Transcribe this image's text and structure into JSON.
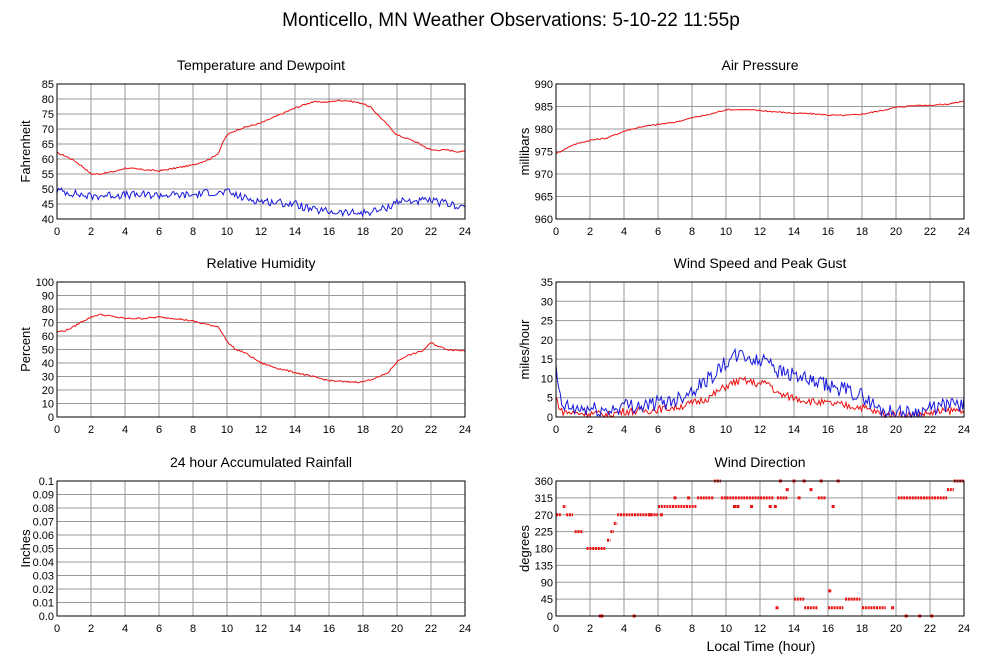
{
  "page": {
    "title": "Monticello, MN Weather Observations: 5-10-22 11:55p",
    "xaxis_label": "Local Time (hour)"
  },
  "colors": {
    "red": "#ee1111",
    "blue": "#1a1adc",
    "grid": "#999999",
    "frame": "#000000"
  },
  "chart_data": [
    {
      "id": "temp",
      "type": "line",
      "title": "Temperature and Dewpoint",
      "ylabel": "Fahrenheit",
      "xlim": [
        0,
        24
      ],
      "ylim": [
        40,
        85
      ],
      "xticks": [
        0,
        2,
        4,
        6,
        8,
        10,
        12,
        14,
        16,
        18,
        20,
        22,
        24
      ],
      "yticks": [
        40,
        45,
        50,
        55,
        60,
        65,
        70,
        75,
        80,
        85
      ],
      "grid": true,
      "series": [
        {
          "color": "#ee1111",
          "noise": 0.25,
          "x": [
            0,
            0.5,
            1,
            1.5,
            2,
            2.5,
            3,
            3.5,
            4,
            5,
            6,
            7,
            8,
            8.5,
            9,
            9.5,
            9.8,
            10,
            10.5,
            11,
            12,
            13,
            14,
            15,
            16,
            16.5,
            17,
            17.5,
            18,
            18.5,
            19,
            19.5,
            20,
            20.5,
            21,
            21.5,
            22,
            22.5,
            23,
            23.5,
            24
          ],
          "values": [
            62,
            61,
            59.5,
            57.5,
            55,
            55,
            55.5,
            56,
            57,
            56.5,
            56,
            57,
            58,
            59,
            60,
            62,
            66,
            68,
            69.5,
            70.5,
            72,
            74.5,
            77,
            79,
            79,
            79.5,
            79.5,
            79,
            78.5,
            77,
            74,
            71,
            68,
            67,
            66,
            64.5,
            63,
            63,
            63,
            62.5,
            62.5
          ]
        },
        {
          "color": "#1a1adc",
          "noise": 1.3,
          "x": [
            0,
            1,
            2,
            3,
            4,
            5,
            6,
            7,
            8,
            9,
            9.5,
            10,
            10.5,
            11,
            12,
            13,
            14,
            15,
            16,
            17,
            18,
            19,
            19.5,
            20,
            21,
            22,
            23,
            24
          ],
          "values": [
            49.5,
            48.5,
            47.5,
            48,
            48,
            48,
            48,
            48,
            48,
            49,
            48.5,
            49,
            48,
            47,
            46,
            45.5,
            45,
            43,
            42.5,
            42,
            42,
            43,
            44,
            46,
            46,
            46,
            45,
            44
          ]
        }
      ]
    },
    {
      "id": "pressure",
      "type": "line",
      "title": "Air Pressure",
      "ylabel": "millibars",
      "xlim": [
        0,
        24
      ],
      "ylim": [
        960,
        990
      ],
      "xticks": [
        0,
        2,
        4,
        6,
        8,
        10,
        12,
        14,
        16,
        18,
        20,
        22,
        24
      ],
      "yticks": [
        960,
        965,
        970,
        975,
        980,
        985,
        990
      ],
      "grid": true,
      "series": [
        {
          "color": "#ee1111",
          "noise": 0.15,
          "x": [
            0,
            1,
            2,
            3,
            4,
            5,
            6,
            7,
            8,
            9,
            10,
            11,
            12,
            13,
            14,
            15,
            16,
            17,
            18,
            19,
            20,
            21,
            22,
            23,
            24
          ],
          "values": [
            974.5,
            976.5,
            977.5,
            978,
            979.5,
            980.5,
            981,
            981.5,
            982.5,
            983.2,
            984.3,
            984.3,
            984.1,
            983.8,
            983.5,
            983.4,
            983.1,
            983,
            983.3,
            984,
            984.8,
            985.2,
            985.3,
            985.5,
            986.2
          ]
        }
      ]
    },
    {
      "id": "humidity",
      "type": "line",
      "title": "Relative Humidity",
      "ylabel": "Percent",
      "xlim": [
        0,
        24
      ],
      "ylim": [
        0,
        100
      ],
      "xticks": [
        0,
        2,
        4,
        6,
        8,
        10,
        12,
        14,
        16,
        18,
        20,
        22,
        24
      ],
      "yticks": [
        0,
        10,
        20,
        30,
        40,
        50,
        60,
        70,
        80,
        90,
        100
      ],
      "grid": true,
      "series": [
        {
          "color": "#ee1111",
          "noise": 0.6,
          "x": [
            0,
            0.5,
            1,
            1.5,
            2,
            2.5,
            3,
            4,
            5,
            6,
            7,
            8,
            9,
            9.5,
            10,
            10.5,
            11,
            12,
            13,
            14,
            15,
            16,
            17,
            18,
            19,
            19.5,
            20,
            20.5,
            21,
            21.5,
            22,
            22.5,
            23,
            24
          ],
          "values": [
            63,
            64,
            67,
            71,
            74,
            76,
            75,
            73,
            73,
            74,
            73,
            71,
            68,
            67,
            56,
            50,
            48,
            40,
            36,
            33,
            30,
            27,
            26,
            26,
            30,
            33,
            41,
            45,
            47,
            49,
            55,
            52,
            50,
            49
          ]
        }
      ]
    },
    {
      "id": "wind",
      "type": "line",
      "title": "Wind Speed and Peak Gust",
      "ylabel": "miles/hour",
      "xlim": [
        0,
        24
      ],
      "ylim": [
        0,
        35
      ],
      "xticks": [
        0,
        2,
        4,
        6,
        8,
        10,
        12,
        14,
        16,
        18,
        20,
        22,
        24
      ],
      "yticks": [
        0,
        5,
        10,
        15,
        20,
        25,
        30,
        35
      ],
      "grid": true,
      "series": [
        {
          "color": "#ee1111",
          "noise": 1.0,
          "x": [
            0,
            0.3,
            1,
            2,
            3,
            4,
            5,
            6,
            7,
            8,
            9,
            10,
            10.5,
            11,
            12,
            12.5,
            13,
            14,
            15,
            16,
            17,
            18,
            19,
            20,
            21,
            22,
            23,
            24
          ],
          "values": [
            5,
            1.5,
            1,
            1,
            0.5,
            1.5,
            1.5,
            2,
            2.5,
            3.5,
            5,
            8,
            9,
            9.5,
            8.5,
            9,
            6,
            5,
            4,
            3.5,
            3,
            2.5,
            1,
            0.5,
            0.5,
            1,
            1.5,
            2
          ]
        },
        {
          "color": "#1a1adc",
          "noise": 2.0,
          "x": [
            0,
            0.3,
            1,
            2,
            3,
            4,
            5,
            6,
            7,
            8,
            9,
            10,
            10.5,
            11,
            12,
            12.5,
            13,
            14,
            15,
            16,
            17,
            18,
            19,
            20,
            21,
            22,
            23,
            24
          ],
          "values": [
            12,
            3,
            2,
            2,
            1.5,
            3,
            3,
            3.5,
            4.5,
            7,
            10,
            14,
            15.5,
            16,
            14,
            16,
            12,
            11,
            9,
            8,
            7,
            5.5,
            2,
            1,
            1,
            2,
            3,
            3.5
          ]
        }
      ]
    },
    {
      "id": "rain",
      "type": "line",
      "title": "24 hour Accumulated Rainfall",
      "ylabel": "Inches",
      "xlim": [
        0,
        24
      ],
      "ylim": [
        0,
        0.1
      ],
      "xticks": [
        0,
        2,
        4,
        6,
        8,
        10,
        12,
        14,
        16,
        18,
        20,
        22,
        24
      ],
      "yticks": [
        "0.0",
        "0.01",
        "0.02",
        "0.03",
        "0.04",
        "0.05",
        "0.06",
        "0.07",
        "0.08",
        "0.09",
        "0.1"
      ],
      "grid": true,
      "series": [
        {
          "color": "#ee1111",
          "noise": 0,
          "x": [
            0,
            24
          ],
          "values": [
            0,
            0
          ]
        }
      ]
    },
    {
      "id": "direction",
      "type": "scatter",
      "title": "Wind Direction",
      "ylabel": "degrees",
      "xlim": [
        0,
        24
      ],
      "ylim": [
        0,
        360
      ],
      "xticks": [
        0,
        2,
        4,
        6,
        8,
        10,
        12,
        14,
        16,
        18,
        20,
        22,
        24
      ],
      "yticks": [
        0,
        45,
        90,
        135,
        180,
        225,
        270,
        315,
        360
      ],
      "grid": true,
      "series": [
        {
          "color": "#ee1111",
          "segments": [
            {
              "x0": 0.0,
              "x1": 0.3,
              "y": 270
            },
            {
              "x0": 0.4,
              "x1": 0.6,
              "y": 292
            },
            {
              "x0": 0.6,
              "x1": 1.0,
              "y": 270
            },
            {
              "x0": 1.1,
              "x1": 1.6,
              "y": 225
            },
            {
              "x0": 1.8,
              "x1": 2.9,
              "y": 180
            },
            {
              "x0": 3.0,
              "x1": 3.2,
              "y": 202
            },
            {
              "x0": 3.2,
              "x1": 3.4,
              "y": 225
            },
            {
              "x0": 3.4,
              "x1": 3.6,
              "y": 247
            },
            {
              "x0": 3.6,
              "x1": 6.0,
              "y": 270
            },
            {
              "x0": 6.0,
              "x1": 8.3,
              "y": 292
            },
            {
              "x0": 8.3,
              "x1": 9.3,
              "y": 315
            },
            {
              "x0": 9.3,
              "x1": 9.7,
              "y": 360
            },
            {
              "x0": 9.7,
              "x1": 12.8,
              "y": 315
            },
            {
              "x0": 13.0,
              "x1": 13.6,
              "y": 315
            },
            {
              "x0": 14.0,
              "x1": 14.6,
              "y": 45
            },
            {
              "x0": 14.6,
              "x1": 15.4,
              "y": 22
            },
            {
              "x0": 15.4,
              "x1": 15.9,
              "y": 315
            },
            {
              "x0": 16.0,
              "x1": 16.9,
              "y": 22
            },
            {
              "x0": 17.0,
              "x1": 17.9,
              "y": 45
            },
            {
              "x0": 18.0,
              "x1": 19.4,
              "y": 22
            },
            {
              "x0": 20.1,
              "x1": 23.0,
              "y": 315
            },
            {
              "x0": 23.0,
              "x1": 23.4,
              "y": 337
            },
            {
              "x0": 23.4,
              "x1": 24.0,
              "y": 360
            }
          ],
          "points": [
            {
              "x": 2.6,
              "y": 0
            },
            {
              "x": 2.7,
              "y": 0
            },
            {
              "x": 4.6,
              "y": 0
            },
            {
              "x": 5.5,
              "y": 270
            },
            {
              "x": 6.2,
              "y": 270
            },
            {
              "x": 7.0,
              "y": 315
            },
            {
              "x": 7.8,
              "y": 315
            },
            {
              "x": 10.5,
              "y": 292
            },
            {
              "x": 10.7,
              "y": 292
            },
            {
              "x": 11.5,
              "y": 292
            },
            {
              "x": 12.6,
              "y": 292
            },
            {
              "x": 12.9,
              "y": 292
            },
            {
              "x": 13.0,
              "y": 22
            },
            {
              "x": 13.2,
              "y": 360
            },
            {
              "x": 13.6,
              "y": 337
            },
            {
              "x": 14.0,
              "y": 360
            },
            {
              "x": 14.3,
              "y": 315
            },
            {
              "x": 14.6,
              "y": 360
            },
            {
              "x": 15.0,
              "y": 337
            },
            {
              "x": 15.6,
              "y": 360
            },
            {
              "x": 16.1,
              "y": 67
            },
            {
              "x": 16.6,
              "y": 360
            },
            {
              "x": 16.3,
              "y": 292
            },
            {
              "x": 19.8,
              "y": 22
            },
            {
              "x": 20.6,
              "y": 0
            },
            {
              "x": 21.4,
              "y": 0
            },
            {
              "x": 22.1,
              "y": 0
            }
          ]
        }
      ]
    }
  ]
}
